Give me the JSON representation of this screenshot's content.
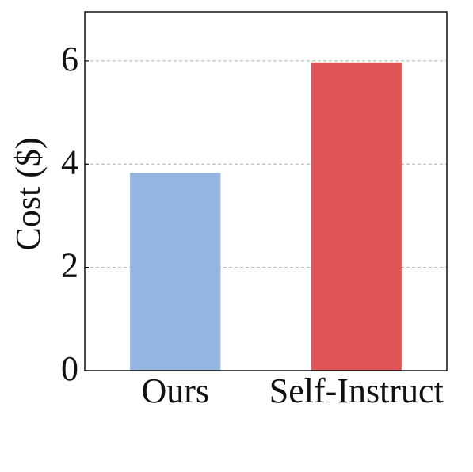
{
  "chart_data": {
    "type": "bar",
    "ylabel": "Cost ($)",
    "categories": [
      "Ours",
      "Self-Instruct"
    ],
    "values": [
      3.83,
      5.97
    ],
    "colors": [
      "#95b5e0",
      "#e05558"
    ],
    "ylim": [
      0,
      6.95
    ],
    "yticks": [
      0,
      2,
      4,
      6
    ],
    "grid": true
  }
}
